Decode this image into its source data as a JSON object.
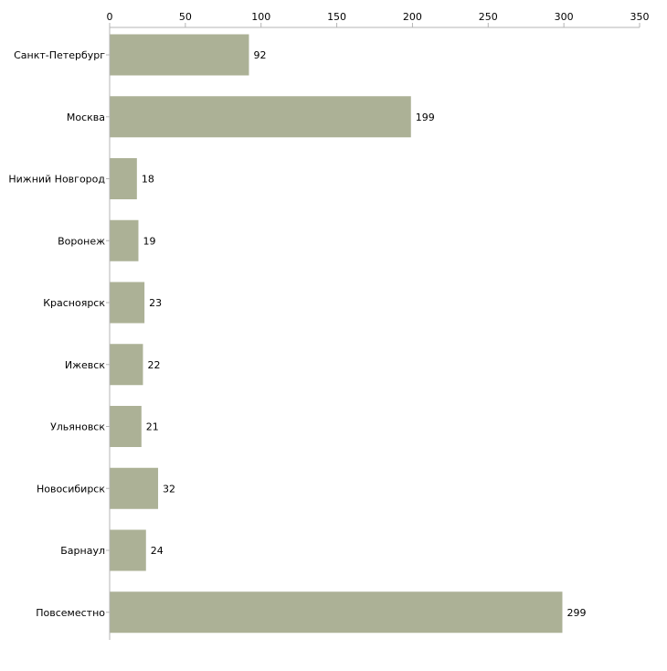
{
  "chart_data": {
    "type": "bar",
    "orientation": "horizontal",
    "title": "",
    "xlabel": "",
    "ylabel": "",
    "categories": [
      "Санкт-Петербург",
      "Москва",
      "Нижний Новгород",
      "Воронеж",
      "Красноярск",
      "Ижевск",
      "Ульяновск",
      "Новосибирск",
      "Барнаул",
      "Повсеместно"
    ],
    "values": [
      92,
      199,
      18,
      19,
      23,
      22,
      21,
      32,
      24,
      299
    ],
    "xlim": [
      0,
      350
    ],
    "ticks": [
      0,
      50,
      100,
      150,
      200,
      250,
      300,
      350
    ],
    "axis_position": "top",
    "grid": false,
    "legend": "none",
    "data_labels": true,
    "colors": {
      "bar": "#acb196",
      "axis": "#b4b4b4",
      "text": "#000000"
    }
  }
}
